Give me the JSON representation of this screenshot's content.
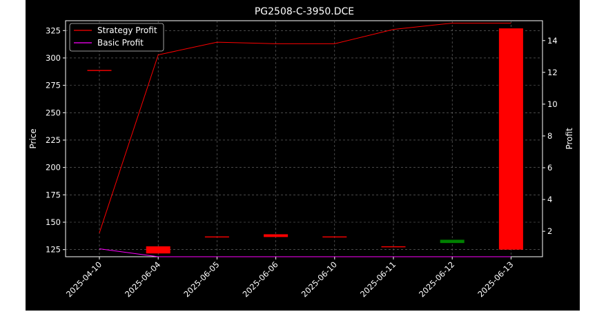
{
  "chart_data": {
    "type": "candlestick",
    "title": "PG2508-C-3950.DCE",
    "xlabel": "",
    "ylabel": "Price",
    "y2label": "Profit",
    "categories": [
      "2025-04-10",
      "2025-06-04",
      "2025-06-05",
      "2025-06-06",
      "2025-06-10",
      "2025-06-11",
      "2025-06-12",
      "2025-06-13"
    ],
    "ylim": [
      118.5,
      334
    ],
    "yticks": [
      125,
      150,
      175,
      200,
      225,
      250,
      275,
      300,
      325
    ],
    "y2lim": [
      0.4,
      15.25
    ],
    "y2ticks": [
      2,
      4,
      6,
      8,
      10,
      12,
      14
    ],
    "grid": true,
    "legend_position": "top-left",
    "candles": [
      {
        "date": "2025-04-10",
        "open": 289,
        "close": 289,
        "color": "#ff0000"
      },
      {
        "date": "2025-06-04",
        "open": 128,
        "close": 121.5,
        "color": "#ff0000"
      },
      {
        "date": "2025-06-05",
        "open": 137,
        "close": 137,
        "color": "#ff0000"
      },
      {
        "date": "2025-06-06",
        "open": 139,
        "close": 136.5,
        "color": "#ff0000"
      },
      {
        "date": "2025-06-10",
        "open": 137,
        "close": 137,
        "color": "#ff0000"
      },
      {
        "date": "2025-06-11",
        "open": 128,
        "close": 128,
        "color": "#ff0000"
      },
      {
        "date": "2025-06-12",
        "open": 131,
        "close": 134,
        "color": "#008000"
      },
      {
        "date": "2025-06-13",
        "open": 125,
        "close": 327,
        "color": "#ff0000"
      }
    ],
    "series": [
      {
        "name": "Strategy Profit",
        "axis": "right",
        "color": "#ff0000",
        "values": [
          1.9,
          13.1,
          13.9,
          13.8,
          13.8,
          14.7,
          15.1,
          15.1
        ]
      },
      {
        "name": "Basic Profit",
        "axis": "right",
        "color": "#ff00ff",
        "values": [
          0.9,
          0.4,
          0.4,
          0.4,
          0.4,
          0.4,
          0.4,
          0.4
        ]
      }
    ]
  }
}
